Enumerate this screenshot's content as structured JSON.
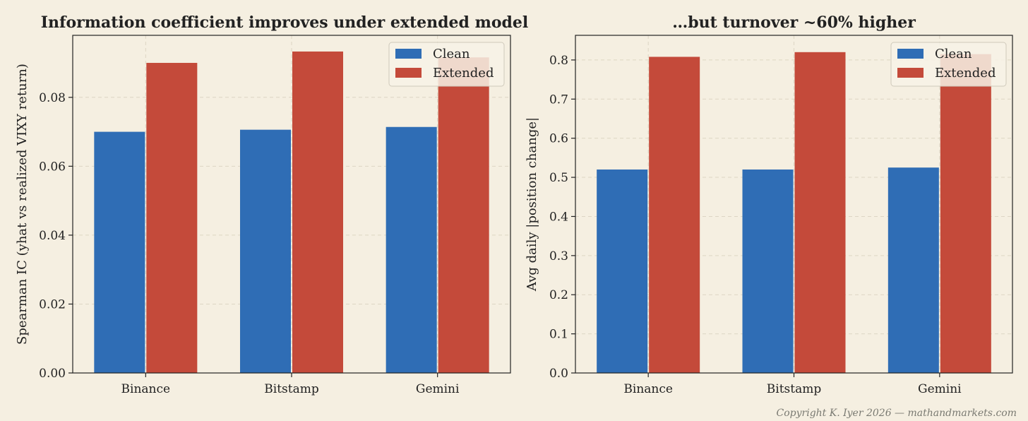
{
  "colors": {
    "background": "#f5efe1",
    "clean": "#2f6db5",
    "extended": "#c44a3a",
    "grid": "#ddd6c4",
    "axis": "#222222"
  },
  "copyright": "Copyright K. Iyer 2026 — mathandmarkets.com",
  "chart_data": [
    {
      "type": "bar",
      "title": "Information coefficient improves under extended model",
      "xlabel": "",
      "ylabel": "Spearman IC (yhat vs realized VIXY return)",
      "categories": [
        "Binance",
        "Bitstamp",
        "Gemini"
      ],
      "series": [
        {
          "name": "Clean",
          "values": [
            0.07,
            0.0706,
            0.0714
          ]
        },
        {
          "name": "Extended",
          "values": [
            0.09,
            0.0933,
            0.0916
          ]
        }
      ],
      "ylim": [
        0,
        0.098
      ],
      "yticks": [
        0,
        0.02,
        0.04,
        0.06,
        0.08
      ],
      "ytick_labels": [
        "0.00",
        "0.02",
        "0.04",
        "0.06",
        "0.08"
      ],
      "grid": true,
      "legend": "top-right"
    },
    {
      "type": "bar",
      "title": "...but turnover ~60% higher",
      "xlabel": "",
      "ylabel": "Avg daily |position change|",
      "categories": [
        "Binance",
        "Bitstamp",
        "Gemini"
      ],
      "series": [
        {
          "name": "Clean",
          "values": [
            0.52,
            0.52,
            0.525
          ]
        },
        {
          "name": "Extended",
          "values": [
            0.808,
            0.82,
            0.815
          ]
        }
      ],
      "ylim": [
        0,
        0.863
      ],
      "yticks": [
        0,
        0.1,
        0.2,
        0.3,
        0.4,
        0.5,
        0.6,
        0.7,
        0.8
      ],
      "ytick_labels": [
        "0.0",
        "0.1",
        "0.2",
        "0.3",
        "0.4",
        "0.5",
        "0.6",
        "0.7",
        "0.8"
      ],
      "grid": true,
      "legend": "top-right"
    }
  ]
}
